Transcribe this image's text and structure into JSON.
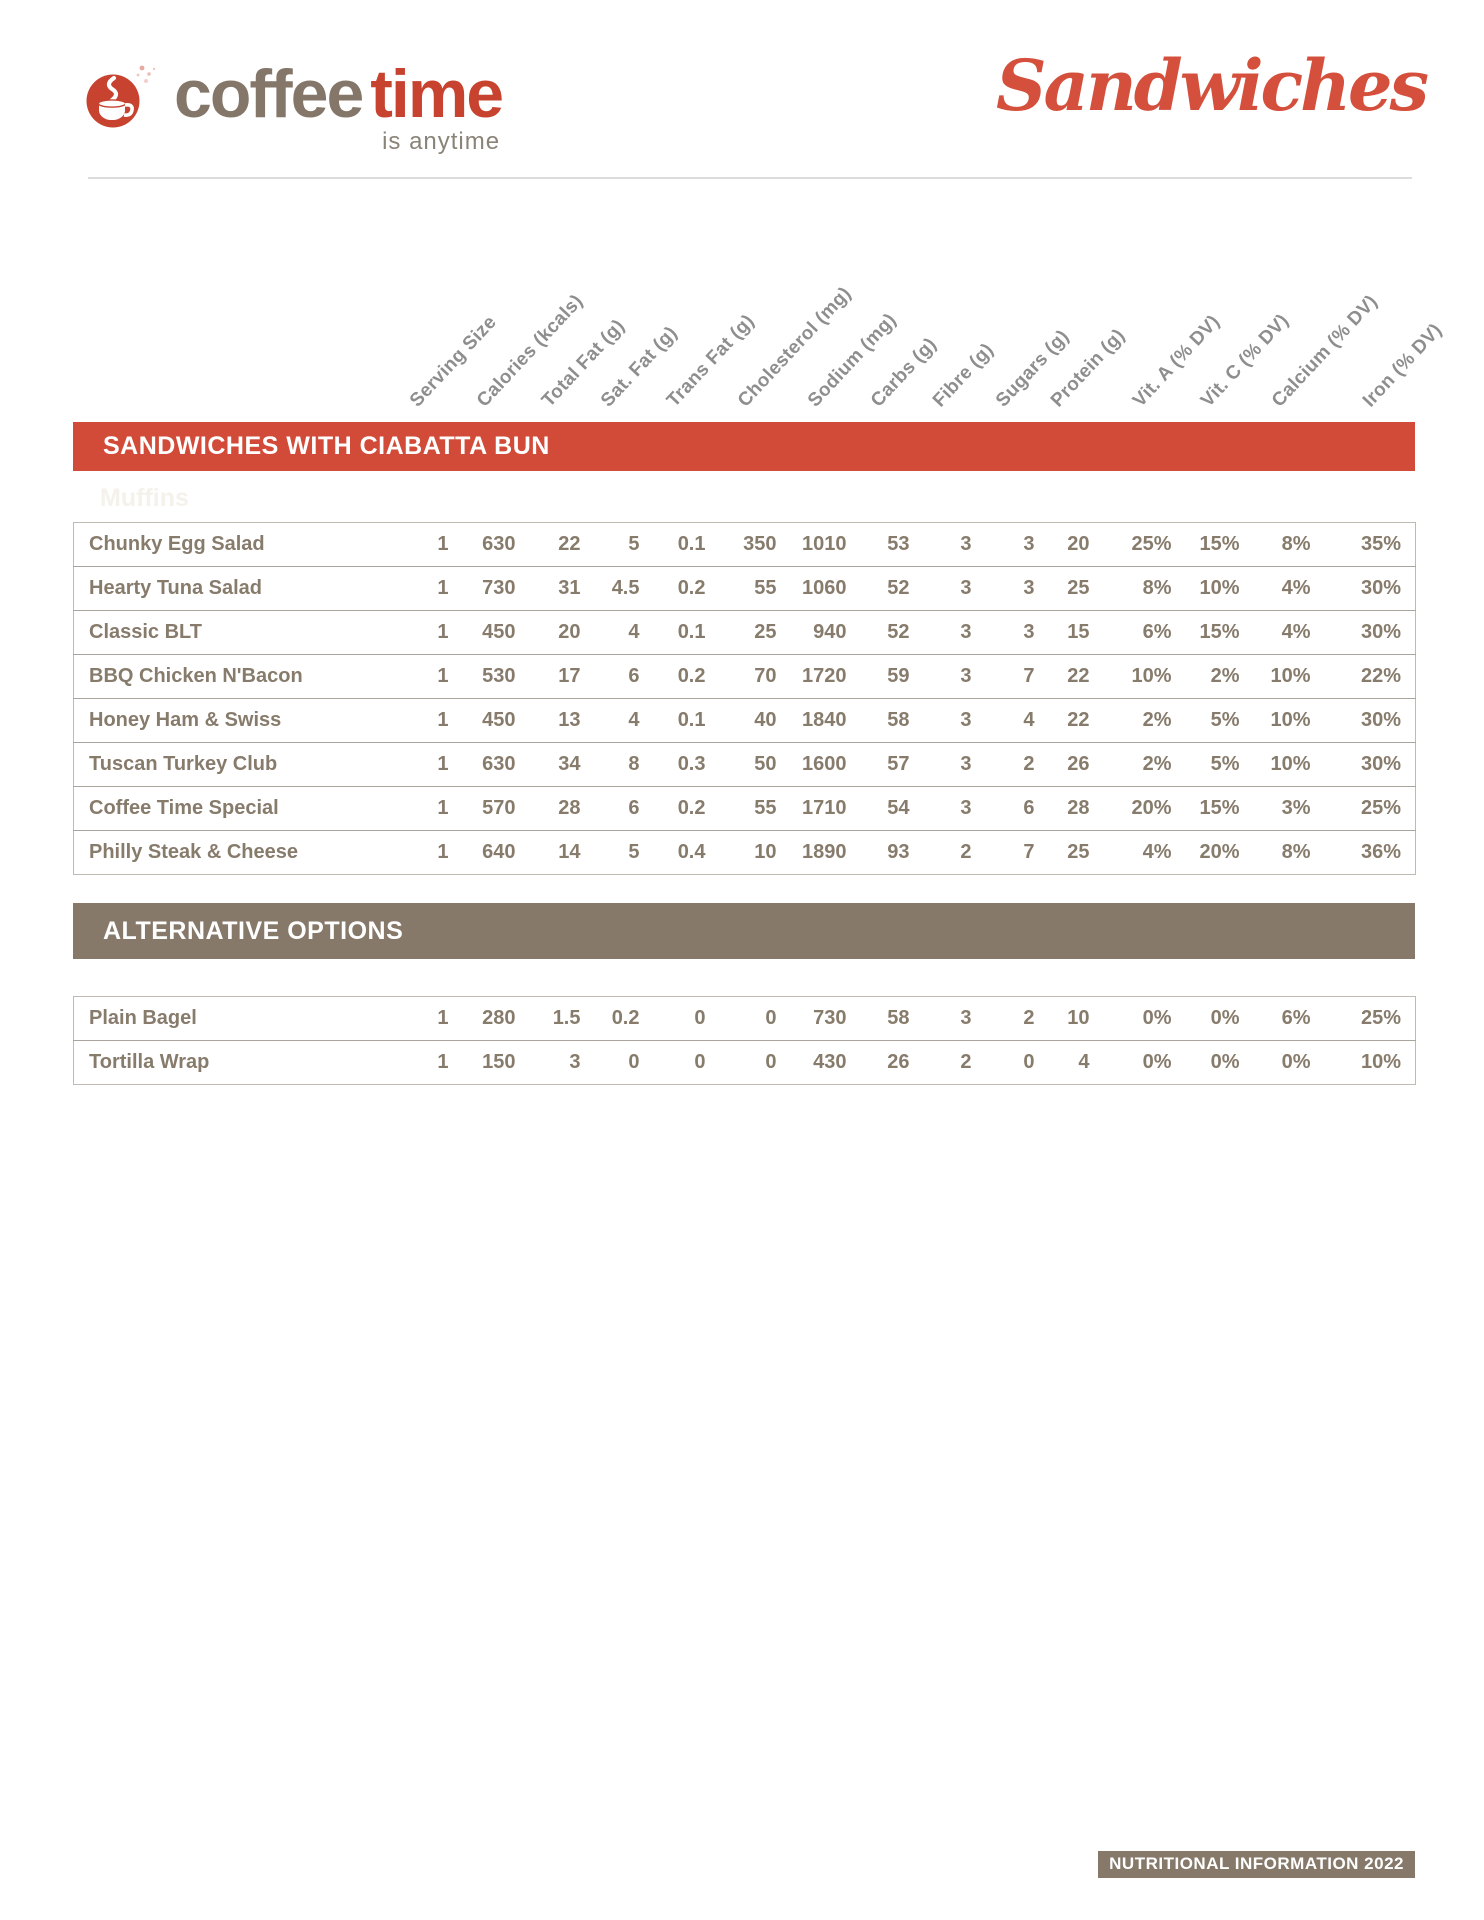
{
  "brand": {
    "word1": "coffee",
    "word2": "time",
    "tagline": "is anytime"
  },
  "title_script": "Sandwiches",
  "columns": [
    "Serving Size",
    "Calories (kcals)",
    "Total Fat (g)",
    "Sat. Fat (g)",
    "Trans Fat (g)",
    "Cholesterol (mg)",
    "Sodium (mg)",
    "Carbs (g)",
    "Fibre (g)",
    "Sugars (g)",
    "Protein (g)",
    "Vit. A (% DV)",
    "Vit. C (% DV)",
    "Calcium (% DV)",
    "Iron (% DV)"
  ],
  "sections": [
    {
      "title": "SANDWICHES WITH CIABATTA BUN",
      "ghost_label": "Muffins",
      "rows": [
        {
          "name": "Chunky Egg Salad",
          "values": [
            "1",
            "630",
            "22",
            "5",
            "0.1",
            "350",
            "1010",
            "53",
            "3",
            "3",
            "20",
            "25%",
            "15%",
            "8%",
            "35%"
          ]
        },
        {
          "name": "Hearty Tuna Salad",
          "values": [
            "1",
            "730",
            "31",
            "4.5",
            "0.2",
            "55",
            "1060",
            "52",
            "3",
            "3",
            "25",
            "8%",
            "10%",
            "4%",
            "30%"
          ]
        },
        {
          "name": "Classic BLT",
          "values": [
            "1",
            "450",
            "20",
            "4",
            "0.1",
            "25",
            "940",
            "52",
            "3",
            "3",
            "15",
            "6%",
            "15%",
            "4%",
            "30%"
          ]
        },
        {
          "name": "BBQ Chicken N'Bacon",
          "values": [
            "1",
            "530",
            "17",
            "6",
            "0.2",
            "70",
            "1720",
            "59",
            "3",
            "7",
            "22",
            "10%",
            "2%",
            "10%",
            "22%"
          ]
        },
        {
          "name": "Honey Ham & Swiss",
          "values": [
            "1",
            "450",
            "13",
            "4",
            "0.1",
            "40",
            "1840",
            "58",
            "3",
            "4",
            "22",
            "2%",
            "5%",
            "10%",
            "30%"
          ]
        },
        {
          "name": "Tuscan Turkey Club",
          "values": [
            "1",
            "630",
            "34",
            "8",
            "0.3",
            "50",
            "1600",
            "57",
            "3",
            "2",
            "26",
            "2%",
            "5%",
            "10%",
            "30%"
          ]
        },
        {
          "name": "Coffee Time Special",
          "values": [
            "1",
            "570",
            "28",
            "6",
            "0.2",
            "55",
            "1710",
            "54",
            "3",
            "6",
            "28",
            "20%",
            "15%",
            "3%",
            "25%"
          ]
        },
        {
          "name": "Philly Steak & Cheese",
          "values": [
            "1",
            "640",
            "14",
            "5",
            "0.4",
            "10",
            "1890",
            "93",
            "2",
            "7",
            "25",
            "4%",
            "20%",
            "8%",
            "36%"
          ]
        }
      ]
    },
    {
      "title": "ALTERNATIVE OPTIONS",
      "rows": [
        {
          "name": "Plain Bagel",
          "values": [
            "1",
            "280",
            "1.5",
            "0.2",
            "0",
            "0",
            "730",
            "58",
            "3",
            "2",
            "10",
            "0%",
            "0%",
            "6%",
            "25%"
          ]
        },
        {
          "name": "Tortilla Wrap",
          "values": [
            "1",
            "150",
            "3",
            "0",
            "0",
            "0",
            "430",
            "26",
            "2",
            "0",
            "4",
            "0%",
            "0%",
            "0%",
            "10%"
          ]
        }
      ]
    }
  ],
  "footer_badge": "NUTRITIONAL INFORMATION 2022",
  "colors": {
    "brand_red": "#c7432f",
    "bar_red": "#d24b38",
    "taupe": "#86796a",
    "cell_text": "#877b6c",
    "hdr_gray": "#8e8e8e"
  }
}
